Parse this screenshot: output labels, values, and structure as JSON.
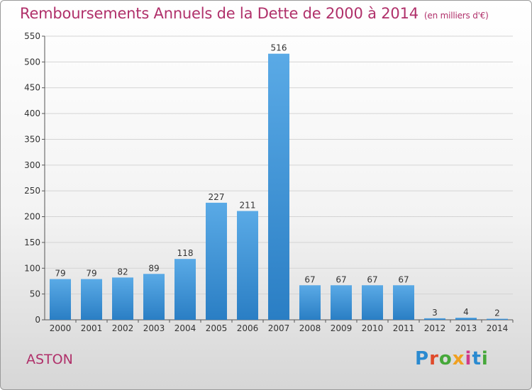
{
  "title": "Remboursements Annuels de la Dette de 2000 à 2014",
  "subtitle": "(en milliers d'€)",
  "commune": "ASTON",
  "logo_text": "Proxiti",
  "colors": {
    "title": "#b0306a",
    "bar_light": "#5aaae6",
    "bar_dark": "#2a7ec4"
  },
  "chart_data": {
    "type": "bar",
    "title": "Remboursements Annuels de la Dette de 2000 à 2014",
    "subtitle": "(en milliers d'€)",
    "categories": [
      "2000",
      "2001",
      "2002",
      "2003",
      "2004",
      "2005",
      "2006",
      "2007",
      "2008",
      "2009",
      "2010",
      "2011",
      "2012",
      "2013",
      "2014"
    ],
    "values": [
      79,
      79,
      82,
      89,
      118,
      227,
      211,
      516,
      67,
      67,
      67,
      67,
      3,
      4,
      2
    ],
    "ylim": [
      0,
      550
    ],
    "yticks": [
      0,
      50,
      100,
      150,
      200,
      250,
      300,
      350,
      400,
      450,
      500,
      550
    ],
    "grid": true,
    "legend": "none"
  }
}
